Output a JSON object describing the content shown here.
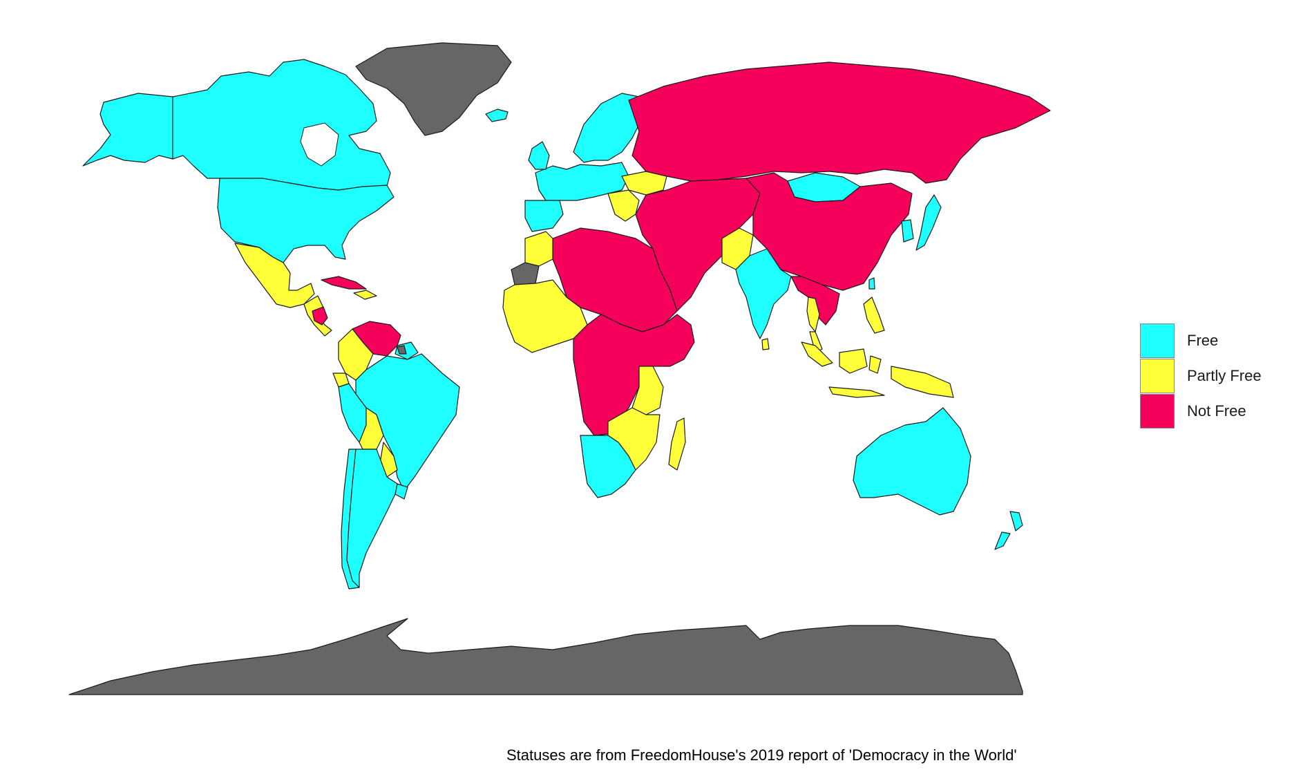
{
  "colors": {
    "free": "#1EFFFF",
    "partly_free": "#FFFF3A",
    "not_free": "#F5005A",
    "no_data": "#666666"
  },
  "legend": {
    "items": [
      {
        "key": "free",
        "label": "Free"
      },
      {
        "key": "partly_free",
        "label": "Partly Free"
      },
      {
        "key": "not_free",
        "label": "Not Free"
      }
    ]
  },
  "caption": "Statuses are from FreedomHouse's 2019 report of 'Democracy in the World'",
  "regions": [
    {
      "name": "Canada",
      "status": "free"
    },
    {
      "name": "Alaska",
      "status": "free"
    },
    {
      "name": "United States",
      "status": "free"
    },
    {
      "name": "Greenland",
      "status": "no_data"
    },
    {
      "name": "Iceland",
      "status": "free"
    },
    {
      "name": "Mexico",
      "status": "partly_free"
    },
    {
      "name": "Central America",
      "status": "partly_free"
    },
    {
      "name": "Nicaragua",
      "status": "not_free"
    },
    {
      "name": "Cuba",
      "status": "not_free"
    },
    {
      "name": "Hispaniola",
      "status": "partly_free"
    },
    {
      "name": "Venezuela",
      "status": "not_free"
    },
    {
      "name": "Colombia",
      "status": "partly_free"
    },
    {
      "name": "Guyana",
      "status": "free"
    },
    {
      "name": "French Guiana",
      "status": "no_data"
    },
    {
      "name": "Ecuador",
      "status": "partly_free"
    },
    {
      "name": "Brazil",
      "status": "free"
    },
    {
      "name": "Peru",
      "status": "free"
    },
    {
      "name": "Bolivia",
      "status": "partly_free"
    },
    {
      "name": "Paraguay",
      "status": "partly_free"
    },
    {
      "name": "Chile",
      "status": "free"
    },
    {
      "name": "Argentina",
      "status": "free"
    },
    {
      "name": "Uruguay",
      "status": "free"
    },
    {
      "name": "Western Europe",
      "status": "free"
    },
    {
      "name": "Scandinavia",
      "status": "free"
    },
    {
      "name": "Iberia",
      "status": "free"
    },
    {
      "name": "Balkans",
      "status": "partly_free"
    },
    {
      "name": "Ukraine",
      "status": "partly_free"
    },
    {
      "name": "Russia",
      "status": "not_free"
    },
    {
      "name": "Middle East and Central Asia",
      "status": "not_free"
    },
    {
      "name": "China",
      "status": "not_free"
    },
    {
      "name": "Mongolia",
      "status": "free"
    },
    {
      "name": "Pakistan",
      "status": "partly_free"
    },
    {
      "name": "India",
      "status": "free"
    },
    {
      "name": "Sri Lanka",
      "status": "partly_free"
    },
    {
      "name": "Myanmar and Mainland SE Asia",
      "status": "not_free"
    },
    {
      "name": "Thailand",
      "status": "partly_free"
    },
    {
      "name": "Malaysia",
      "status": "partly_free"
    },
    {
      "name": "Indonesia",
      "status": "partly_free"
    },
    {
      "name": "Philippines",
      "status": "partly_free"
    },
    {
      "name": "Japan",
      "status": "free"
    },
    {
      "name": "Korea",
      "status": "free"
    },
    {
      "name": "Taiwan",
      "status": "free"
    },
    {
      "name": "North Africa",
      "status": "not_free"
    },
    {
      "name": "Morocco",
      "status": "partly_free"
    },
    {
      "name": "Western Sahara",
      "status": "no_data"
    },
    {
      "name": "West Africa",
      "status": "partly_free"
    },
    {
      "name": "Central and East Africa",
      "status": "not_free"
    },
    {
      "name": "Kenya and Tanzania",
      "status": "partly_free"
    },
    {
      "name": "Zambia and Mozambique",
      "status": "partly_free"
    },
    {
      "name": "Madagascar",
      "status": "partly_free"
    },
    {
      "name": "Southern Africa",
      "status": "free"
    },
    {
      "name": "Australia",
      "status": "free"
    },
    {
      "name": "New Zealand",
      "status": "free"
    },
    {
      "name": "Antarctica",
      "status": "no_data"
    }
  ]
}
